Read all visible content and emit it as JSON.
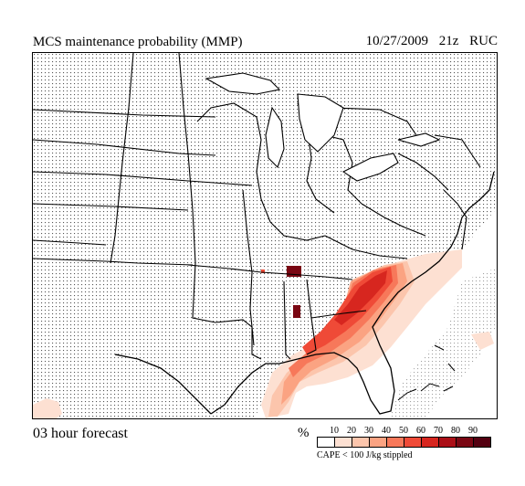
{
  "header": {
    "title": "MCS maintenance probability (MMP)",
    "date": "10/27/2009",
    "cycle": "21z",
    "model": "RUC"
  },
  "footer": {
    "forecast_label": "03 hour forecast"
  },
  "legend": {
    "unit": "%",
    "ticks": [
      "10",
      "20",
      "30",
      "40",
      "50",
      "60",
      "70",
      "80",
      "90"
    ],
    "colors": [
      "#ffffff",
      "#fde0d2",
      "#fcc5ac",
      "#fba382",
      "#f7785a",
      "#ef4a37",
      "#d7261f",
      "#ab0f17",
      "#7a0713",
      "#530010"
    ],
    "note": "CAPE < 100 J/kg stippled"
  },
  "map": {
    "region": "eastern-and-central-united-states",
    "stipple": "CAPE < 100 J/kg",
    "probability_area": "southeast-coast-and-gulf"
  }
}
